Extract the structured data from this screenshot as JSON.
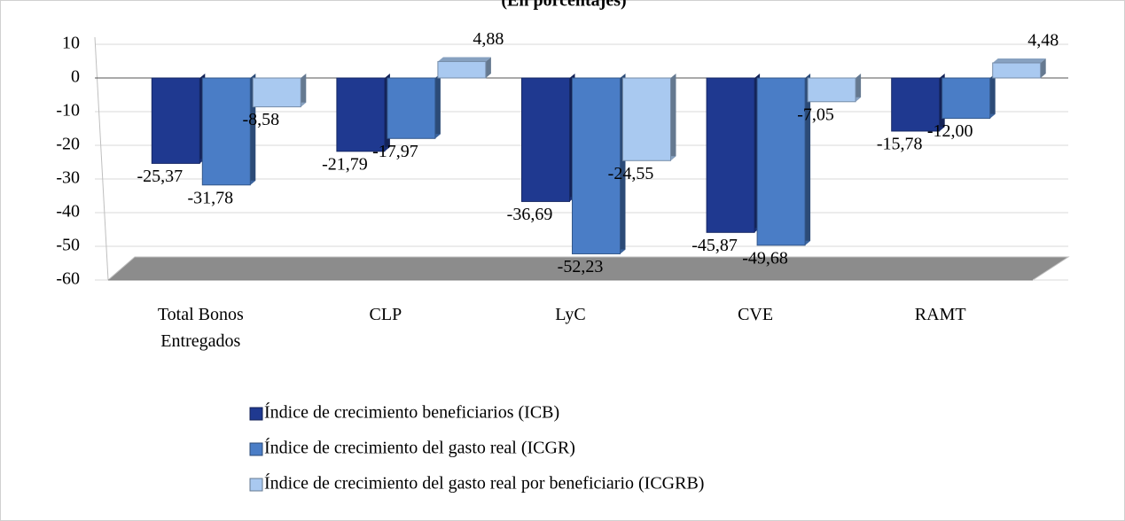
{
  "chart_data": {
    "type": "bar3d",
    "subtitle": "(En porcentajes)",
    "categories": [
      "Total Bonos Entregados",
      "CLP",
      "LyC",
      "CVE",
      "RAMT"
    ],
    "series": [
      {
        "name": "Índice de crecimiento beneficiarios (ICB)",
        "color": "#1f3990",
        "values": [
          -25.37,
          -21.79,
          -36.69,
          -45.87,
          -15.78
        ],
        "value_labels": [
          "-25,37",
          "-21,79",
          "-36,69",
          "-45,87",
          "-15,78"
        ]
      },
      {
        "name": "Índice de crecimiento del gasto real (ICGR)",
        "color": "#4a7dc6",
        "values": [
          -31.78,
          -17.97,
          -52.23,
          -49.68,
          -12.0
        ],
        "value_labels": [
          "-31,78",
          "-17,97",
          "-52,23",
          "-49,68",
          "-12,00"
        ]
      },
      {
        "name": "Índice de crecimiento del gasto real por beneficiario (ICGRB)",
        "color": "#a9c9f0",
        "values": [
          -8.58,
          4.88,
          -24.55,
          -7.05,
          4.48
        ],
        "value_labels": [
          "-8,58",
          "4,88",
          "-24,55",
          "-7,05",
          "4,48"
        ]
      }
    ],
    "ylim": [
      -60,
      10
    ],
    "yticks": [
      -60,
      -50,
      -40,
      -30,
      -20,
      -10,
      0,
      10
    ],
    "grid": true
  }
}
